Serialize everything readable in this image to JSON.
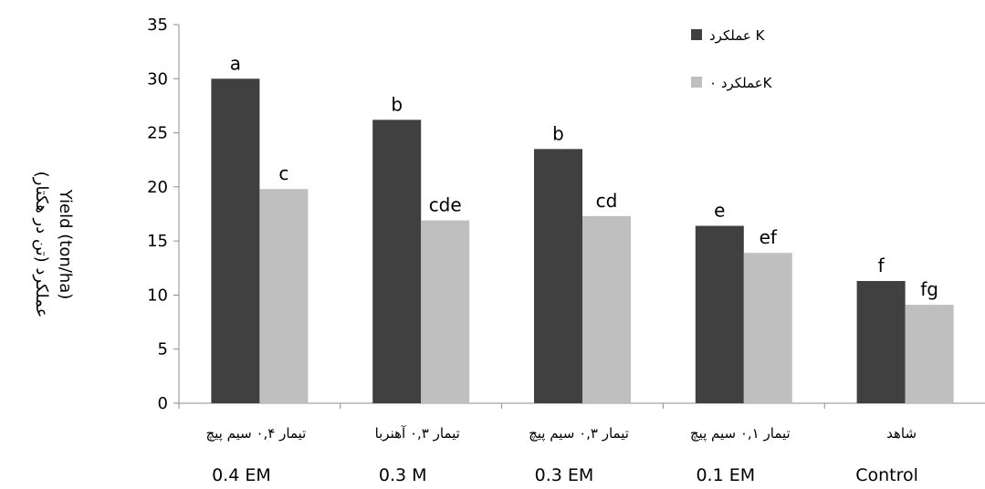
{
  "chart_data": {
    "type": "bar",
    "categories": [
      {
        "fa": "تیمار ۰,۴ سیم پیچ",
        "en": "0.4 EM"
      },
      {
        "fa": "تیمار ۰,۳ آهنربا",
        "en": "0.3 M"
      },
      {
        "fa": "تیمار ۰,۳ سیم پیچ",
        "en": "0.3 EM"
      },
      {
        "fa": "تیمار ۰,۱ سیم پیچ",
        "en": "0.1 EM"
      },
      {
        "fa": "شاهد",
        "en": "Control"
      }
    ],
    "series": [
      {
        "name": "عملکرد K",
        "color": "#404040",
        "values": [
          30.0,
          26.2,
          23.5,
          16.4,
          11.3
        ],
        "labels": [
          "a",
          "b",
          "b",
          "e",
          "f"
        ]
      },
      {
        "name": "عملکرد ۰K",
        "color": "#bfbfbf",
        "values": [
          19.8,
          16.9,
          17.3,
          13.9,
          9.1
        ],
        "labels": [
          "c",
          "cde",
          "cd",
          "ef",
          "fg"
        ]
      }
    ],
    "ylabel_fa": "عملکرد (تن در هکتار)",
    "ylabel_en": "Yield (ton/ha)",
    "ylim": [
      0,
      35
    ],
    "yticks": [
      0,
      5,
      10,
      15,
      20,
      25,
      30,
      35
    ],
    "legend_position": "top-right",
    "grid": false
  }
}
